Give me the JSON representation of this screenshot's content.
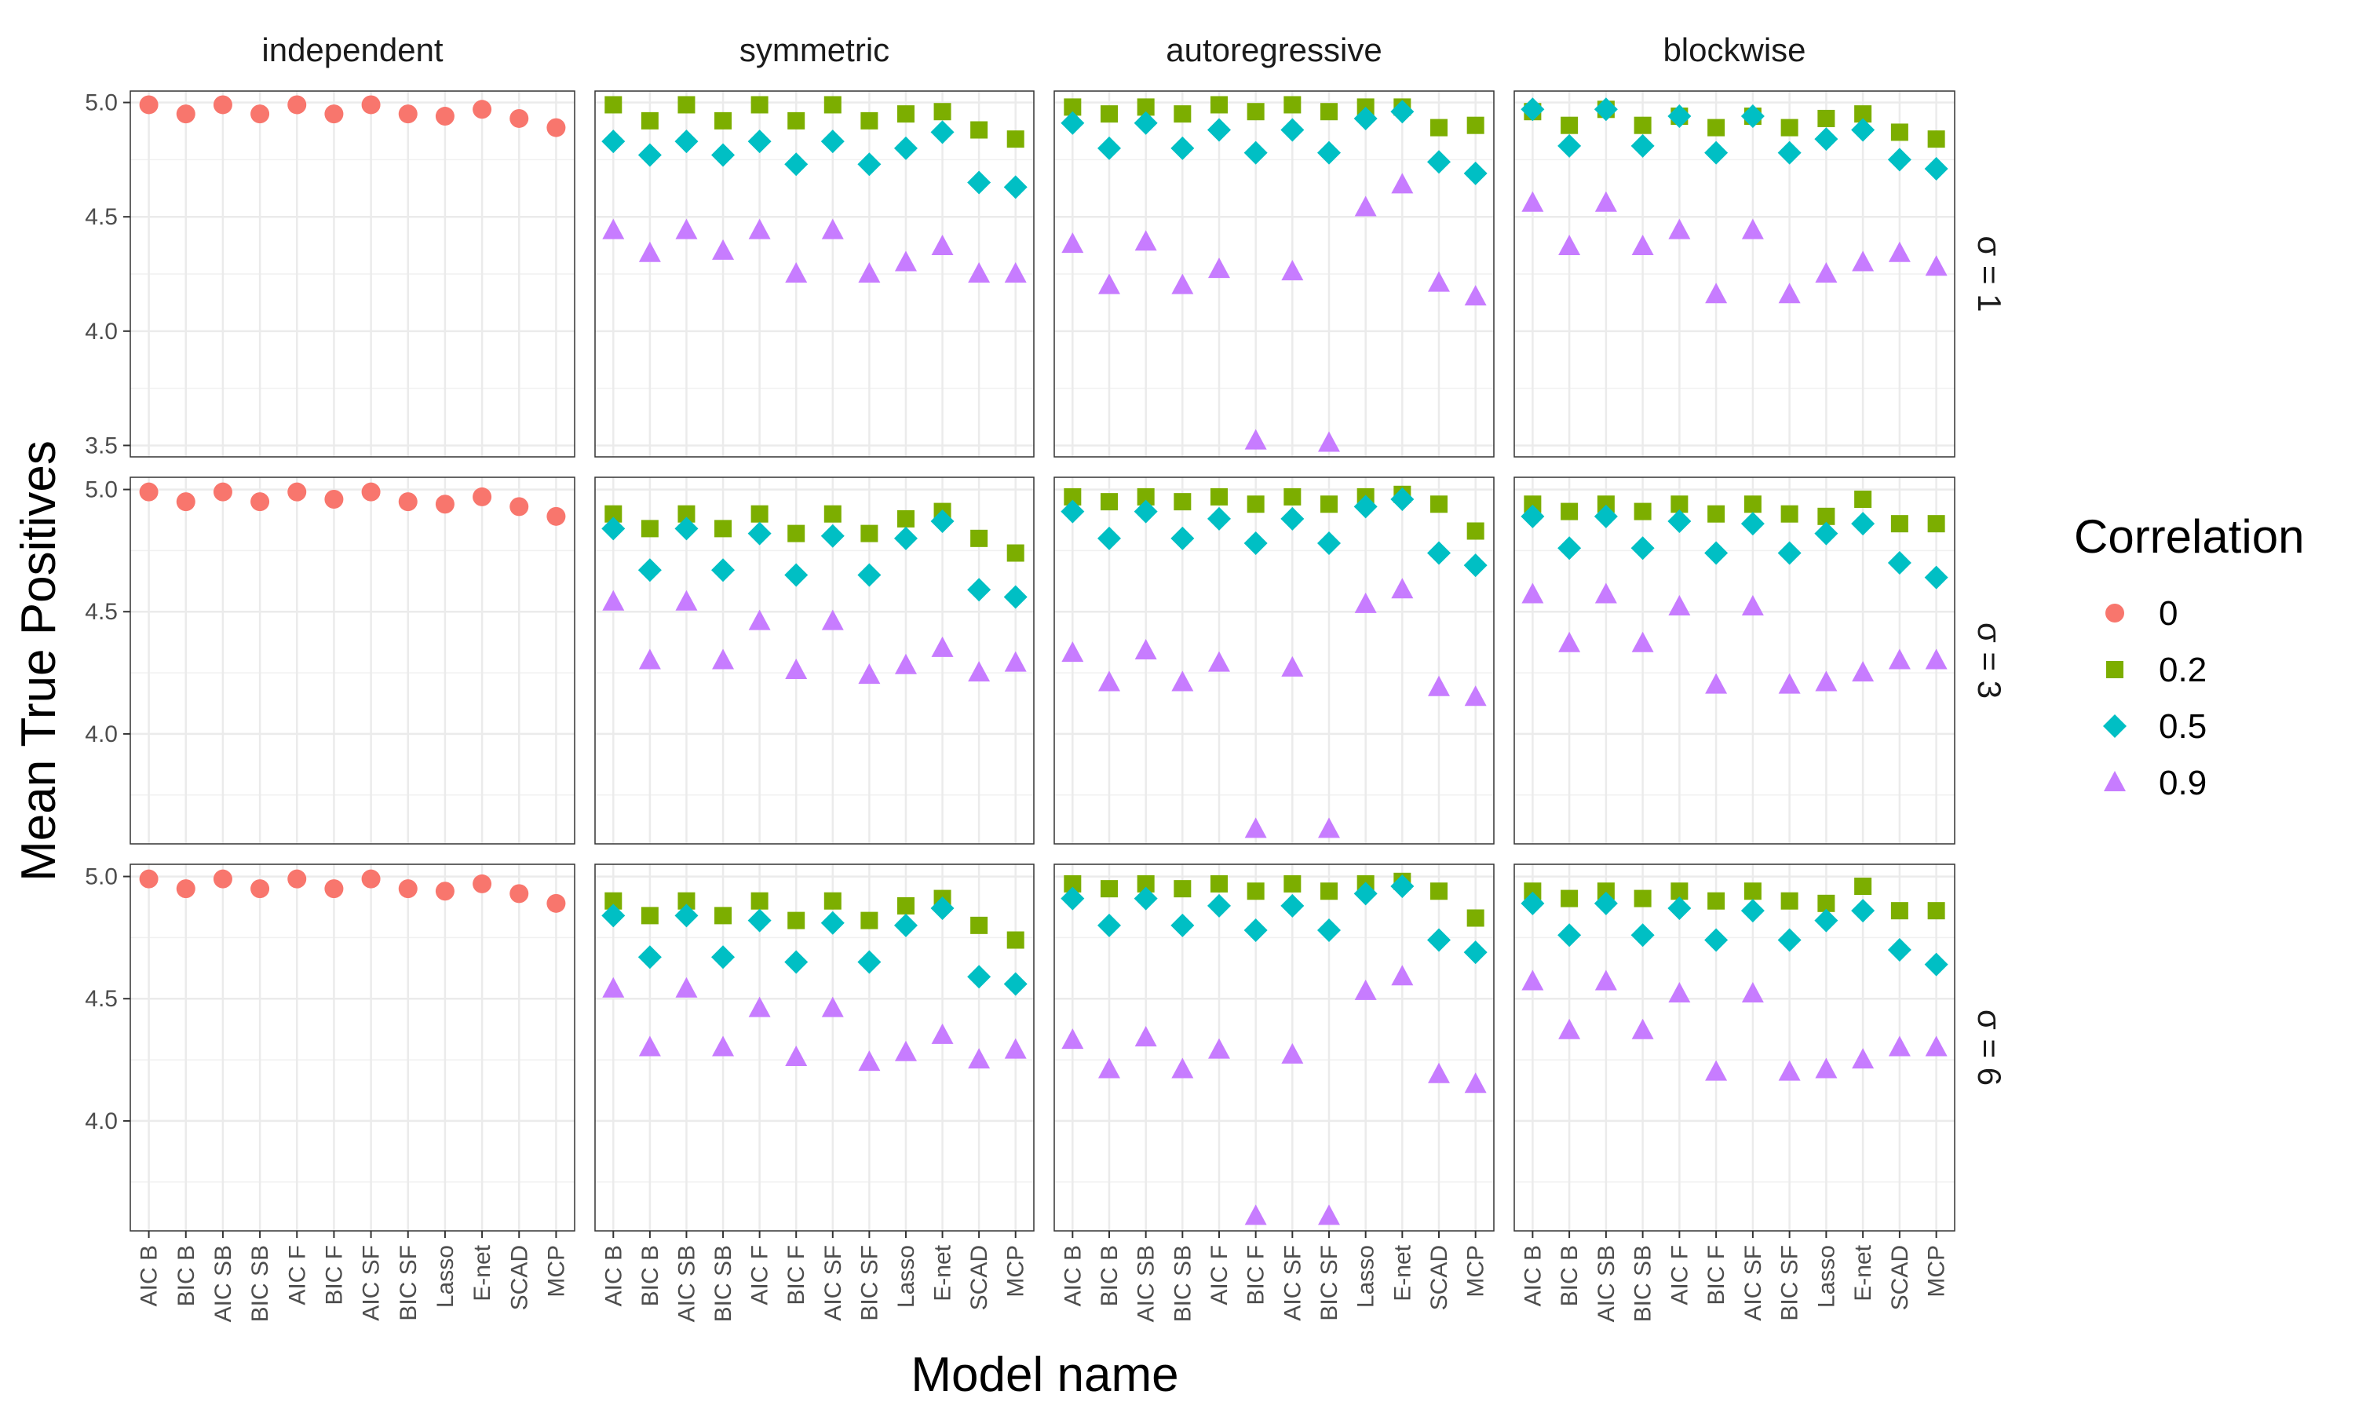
{
  "chart_data": {
    "type": "scatter",
    "facet_columns": [
      "independent",
      "symmetric",
      "autoregressive",
      "blockwise"
    ],
    "facet_rows": [
      "σ = 1",
      "σ = 3",
      "σ = 6"
    ],
    "categories": [
      "AIC B",
      "BIC B",
      "AIC SB",
      "BIC SB",
      "AIC F",
      "BIC F",
      "AIC SF",
      "BIC SF",
      "Lasso",
      "E-net",
      "SCAD",
      "MCP"
    ],
    "xlabel": "Model name",
    "ylabel": "Mean True Positives",
    "legend": {
      "title": "Correlation",
      "placement": "right",
      "entries": [
        {
          "label": "0",
          "color": "#F8766D",
          "shape": "circle"
        },
        {
          "label": "0.2",
          "color": "#7CAE00",
          "shape": "square"
        },
        {
          "label": "0.5",
          "color": "#00BFC4",
          "shape": "diamond"
        },
        {
          "label": "0.9",
          "color": "#C77CFF",
          "shape": "triangle"
        }
      ]
    },
    "rows": [
      {
        "ylim": [
          3.45,
          5.05
        ],
        "yticks": [
          "3.5",
          "4.0",
          "4.5",
          "5.0"
        ],
        "ytick_values": [
          3.5,
          4.0,
          4.5,
          5.0
        ]
      },
      {
        "ylim": [
          3.55,
          5.05
        ],
        "yticks": [
          "4.0",
          "4.5",
          "5.0"
        ],
        "ytick_values": [
          4.0,
          4.5,
          5.0
        ]
      },
      {
        "ylim": [
          3.55,
          5.05
        ],
        "yticks": [
          "4.0",
          "4.5",
          "5.0"
        ],
        "ytick_values": [
          4.0,
          4.5,
          5.0
        ]
      }
    ],
    "panels": [
      {
        "column": "independent",
        "row": "σ = 1",
        "series": [
          {
            "name": "0",
            "values": [
              4.99,
              4.95,
              4.99,
              4.95,
              4.99,
              4.95,
              4.99,
              4.95,
              4.94,
              4.97,
              4.93,
              4.89
            ]
          }
        ]
      },
      {
        "column": "symmetric",
        "row": "σ = 1",
        "series": [
          {
            "name": "0.2",
            "values": [
              4.99,
              4.92,
              4.99,
              4.92,
              4.99,
              4.92,
              4.99,
              4.92,
              4.95,
              4.96,
              4.88,
              4.84
            ]
          },
          {
            "name": "0.5",
            "values": [
              4.83,
              4.77,
              4.83,
              4.77,
              4.83,
              4.73,
              4.83,
              4.73,
              4.8,
              4.87,
              4.65,
              4.63
            ]
          },
          {
            "name": "0.9",
            "values": [
              4.44,
              4.34,
              4.44,
              4.35,
              4.44,
              4.25,
              4.44,
              4.25,
              4.3,
              4.37,
              4.25,
              4.25
            ]
          }
        ]
      },
      {
        "column": "autoregressive",
        "row": "σ = 1",
        "series": [
          {
            "name": "0.2",
            "values": [
              4.98,
              4.95,
              4.98,
              4.95,
              4.99,
              4.96,
              4.99,
              4.96,
              4.98,
              4.98,
              4.89,
              4.9
            ]
          },
          {
            "name": "0.5",
            "values": [
              4.91,
              4.8,
              4.91,
              4.8,
              4.88,
              4.78,
              4.88,
              4.78,
              4.93,
              4.96,
              4.74,
              4.69
            ]
          },
          {
            "name": "0.9",
            "values": [
              4.38,
              4.2,
              4.39,
              4.2,
              4.27,
              3.52,
              4.26,
              3.51,
              4.54,
              4.64,
              4.21,
              4.15
            ]
          }
        ]
      },
      {
        "column": "blockwise",
        "row": "σ = 1",
        "series": [
          {
            "name": "0.2",
            "values": [
              4.96,
              4.9,
              4.97,
              4.9,
              4.94,
              4.89,
              4.94,
              4.89,
              4.93,
              4.95,
              4.87,
              4.84
            ]
          },
          {
            "name": "0.5",
            "values": [
              4.97,
              4.81,
              4.97,
              4.81,
              4.94,
              4.78,
              4.94,
              4.78,
              4.84,
              4.88,
              4.75,
              4.71
            ]
          },
          {
            "name": "0.9",
            "values": [
              4.56,
              4.37,
              4.56,
              4.37,
              4.44,
              4.16,
              4.44,
              4.16,
              4.25,
              4.3,
              4.34,
              4.28
            ]
          }
        ]
      },
      {
        "column": "independent",
        "row": "σ = 3",
        "series": [
          {
            "name": "0",
            "values": [
              4.99,
              4.95,
              4.99,
              4.95,
              4.99,
              4.96,
              4.99,
              4.95,
              4.94,
              4.97,
              4.93,
              4.89
            ]
          }
        ]
      },
      {
        "column": "symmetric",
        "row": "σ = 3",
        "series": [
          {
            "name": "0.2",
            "values": [
              4.9,
              4.84,
              4.9,
              4.84,
              4.9,
              4.82,
              4.9,
              4.82,
              4.88,
              4.91,
              4.8,
              4.74
            ]
          },
          {
            "name": "0.5",
            "values": [
              4.84,
              4.67,
              4.84,
              4.67,
              4.82,
              4.65,
              4.81,
              4.65,
              4.8,
              4.87,
              4.59,
              4.56
            ]
          },
          {
            "name": "0.9",
            "values": [
              4.54,
              4.3,
              4.54,
              4.3,
              4.46,
              4.26,
              4.46,
              4.24,
              4.28,
              4.35,
              4.25,
              4.29
            ]
          }
        ]
      },
      {
        "column": "autoregressive",
        "row": "σ = 3",
        "series": [
          {
            "name": "0.2",
            "values": [
              4.97,
              4.95,
              4.97,
              4.95,
              4.97,
              4.94,
              4.97,
              4.94,
              4.97,
              4.98,
              4.94,
              4.83
            ]
          },
          {
            "name": "0.5",
            "values": [
              4.91,
              4.8,
              4.91,
              4.8,
              4.88,
              4.78,
              4.88,
              4.78,
              4.93,
              4.96,
              4.74,
              4.69
            ]
          },
          {
            "name": "0.9",
            "values": [
              4.33,
              4.21,
              4.34,
              4.21,
              4.29,
              3.61,
              4.27,
              3.61,
              4.53,
              4.59,
              4.19,
              4.15
            ]
          }
        ]
      },
      {
        "column": "blockwise",
        "row": "σ = 3",
        "series": [
          {
            "name": "0.2",
            "values": [
              4.94,
              4.91,
              4.94,
              4.91,
              4.94,
              4.9,
              4.94,
              4.9,
              4.89,
              4.96,
              4.86,
              4.86
            ]
          },
          {
            "name": "0.5",
            "values": [
              4.89,
              4.76,
              4.89,
              4.76,
              4.87,
              4.74,
              4.86,
              4.74,
              4.82,
              4.86,
              4.7,
              4.64
            ]
          },
          {
            "name": "0.9",
            "values": [
              4.57,
              4.37,
              4.57,
              4.37,
              4.52,
              4.2,
              4.52,
              4.2,
              4.21,
              4.25,
              4.3,
              4.3
            ]
          }
        ]
      },
      {
        "column": "independent",
        "row": "σ = 6",
        "series": [
          {
            "name": "0",
            "values": [
              4.99,
              4.95,
              4.99,
              4.95,
              4.99,
              4.95,
              4.99,
              4.95,
              4.94,
              4.97,
              4.93,
              4.89
            ]
          }
        ]
      },
      {
        "column": "symmetric",
        "row": "σ = 6",
        "series": [
          {
            "name": "0.2",
            "values": [
              4.9,
              4.84,
              4.9,
              4.84,
              4.9,
              4.82,
              4.9,
              4.82,
              4.88,
              4.91,
              4.8,
              4.74
            ]
          },
          {
            "name": "0.5",
            "values": [
              4.84,
              4.67,
              4.84,
              4.67,
              4.82,
              4.65,
              4.81,
              4.65,
              4.8,
              4.87,
              4.59,
              4.56
            ]
          },
          {
            "name": "0.9",
            "values": [
              4.54,
              4.3,
              4.54,
              4.3,
              4.46,
              4.26,
              4.46,
              4.24,
              4.28,
              4.35,
              4.25,
              4.29
            ]
          }
        ]
      },
      {
        "column": "autoregressive",
        "row": "σ = 6",
        "series": [
          {
            "name": "0.2",
            "values": [
              4.97,
              4.95,
              4.97,
              4.95,
              4.97,
              4.94,
              4.97,
              4.94,
              4.97,
              4.98,
              4.94,
              4.83
            ]
          },
          {
            "name": "0.5",
            "values": [
              4.91,
              4.8,
              4.91,
              4.8,
              4.88,
              4.78,
              4.88,
              4.78,
              4.93,
              4.96,
              4.74,
              4.69
            ]
          },
          {
            "name": "0.9",
            "values": [
              4.33,
              4.21,
              4.34,
              4.21,
              4.29,
              3.61,
              4.27,
              3.61,
              4.53,
              4.59,
              4.19,
              4.15
            ]
          }
        ]
      },
      {
        "column": "blockwise",
        "row": "σ = 6",
        "series": [
          {
            "name": "0.2",
            "values": [
              4.94,
              4.91,
              4.94,
              4.91,
              4.94,
              4.9,
              4.94,
              4.9,
              4.89,
              4.96,
              4.86,
              4.86
            ]
          },
          {
            "name": "0.5",
            "values": [
              4.89,
              4.76,
              4.89,
              4.76,
              4.87,
              4.74,
              4.86,
              4.74,
              4.82,
              4.86,
              4.7,
              4.64
            ]
          },
          {
            "name": "0.9",
            "values": [
              4.57,
              4.37,
              4.57,
              4.37,
              4.52,
              4.2,
              4.52,
              4.2,
              4.21,
              4.25,
              4.3,
              4.3
            ]
          }
        ]
      }
    ]
  }
}
